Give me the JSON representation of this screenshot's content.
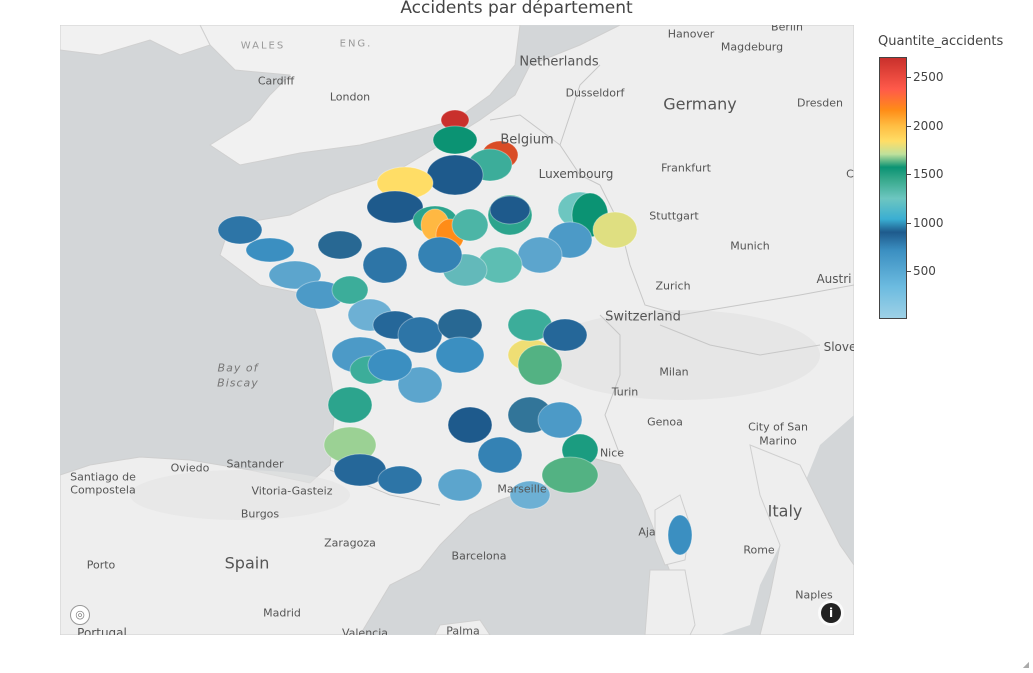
{
  "title": "Accidents par département",
  "colorbar": {
    "title": "Quantite_accidents",
    "ticks": [
      "2500",
      "2000",
      "1500",
      "1000",
      "500"
    ]
  },
  "map_labels": {
    "countries": [
      "Netherlands",
      "Belgium",
      "Luxembourg",
      "Germany",
      "Switzerland",
      "Spain",
      "Italy",
      "Portugal",
      "Slove",
      "Austri"
    ],
    "regions": [
      "WALES",
      "ENG."
    ],
    "sea": [
      "Bay of",
      "Biscay"
    ],
    "cities": [
      "Cardiff",
      "London",
      "Hanover",
      "Berlin",
      "Magdeburg",
      "Dresden",
      "Dusseldorf",
      "Frankfurt",
      "Stuttgart",
      "Munich",
      "Zurich",
      "Milan",
      "Turin",
      "Genoa",
      "City of San",
      "Marino",
      "Nice",
      "Marseille",
      "Rome",
      "Naples",
      "Barcelona",
      "Madrid",
      "Zaragoza",
      "Burgos",
      "Vitoria-Gasteiz",
      "Santander",
      "Oviedo",
      "Santiago de",
      "Compostela",
      "Porto",
      "Palma",
      "Valencia",
      "Aja",
      "C"
    ]
  },
  "attribution_icon": "mapbox-logo-icon",
  "info_icon": "info-icon",
  "chart_data": {
    "type": "choropleth-map",
    "title": "Accidents par département",
    "colorbar_title": "Quantite_accidents",
    "range": [
      0,
      2700
    ],
    "colorscale": [
      "#9ed1e6",
      "#3b8fc1",
      "#1e5a8c",
      "#6dc6c0",
      "#0b9373",
      "#bfe19c",
      "#ffdd66",
      "#ff8c17",
      "#c9302c"
    ],
    "regions": [
      {
        "value": 2700
      },
      {
        "value": 2550
      },
      {
        "value": 1200
      },
      {
        "value": 1050
      },
      {
        "value": 500
      },
      {
        "value": 1650
      },
      {
        "value": 500
      },
      {
        "value": 1100
      },
      {
        "value": 1900
      },
      {
        "value": 2200
      },
      {
        "value": 1000
      },
      {
        "value": 1100
      },
      {
        "value": 500
      },
      {
        "value": 900
      },
      {
        "value": 1200
      },
      {
        "value": 1550
      },
      {
        "value": 250
      },
      {
        "value": 200
      },
      {
        "value": 950
      },
      {
        "value": 850
      },
      {
        "value": 350
      },
      {
        "value": 400
      },
      {
        "value": 550
      },
      {
        "value": 300
      },
      {
        "value": 400
      },
      {
        "value": 200
      },
      {
        "value": 250
      },
      {
        "value": 1050
      },
      {
        "value": 150
      },
      {
        "value": 250
      },
      {
        "value": 450
      },
      {
        "value": 1050
      },
      {
        "value": 400
      },
      {
        "value": 550
      },
      {
        "value": 300
      },
      {
        "value": 1600
      },
      {
        "value": 1050
      },
      {
        "value": 450
      },
      {
        "value": 1300
      },
      {
        "value": 200
      },
      {
        "value": 300
      },
      {
        "value": 1100
      },
      {
        "value": 500
      },
      {
        "value": 600
      },
      {
        "value": 250
      },
      {
        "value": 1150
      },
      {
        "value": 350
      },
      {
        "value": 1300
      },
      {
        "value": 1400
      },
      {
        "value": 450
      },
      {
        "value": 400
      },
      {
        "value": 200
      },
      {
        "value": 150
      },
      {
        "value": 300
      }
    ]
  }
}
